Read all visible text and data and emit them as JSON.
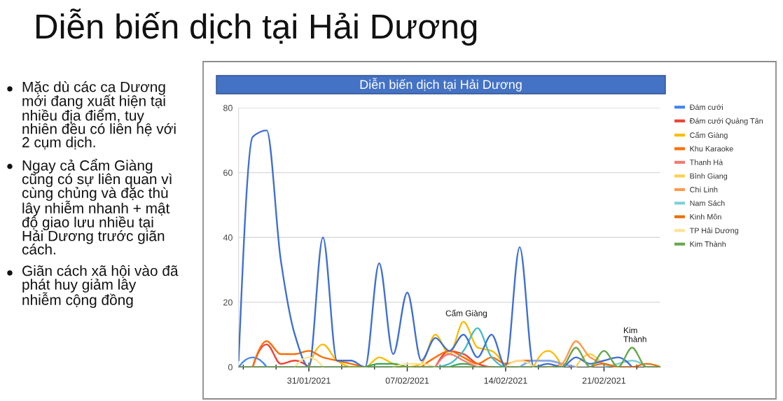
{
  "chart_data": {
    "type": "line",
    "title": "Diễn biến dịch tại Hải Dương",
    "subtitle": "Diễn biến dịch tại Hải Dương",
    "annotations": [
      "Mặc dù các ca Dương mới đang xuất hiện tại nhiều địa điểm, tuy nhiên đều có liên hệ với 2 cụm dịch.",
      "Ngay cả Cẩm Giàng cũng có sự liên quan vì cùng chủng và đặc thù lây nhiễm nhanh + mật độ giao lưu nhiều tại Hải Dương trước giãn cách.",
      "Giãn cách xã hội vào đã phát huy giảm lây nhiễm cộng đồng",
      {
        "text": "Cẩm Giàng",
        "x": "2021-02-11",
        "y": 14
      },
      {
        "text": "Kim\nThành",
        "x": "2021-02-23",
        "y": 6
      }
    ],
    "x": [
      "2021-01-26",
      "2021-01-27",
      "2021-01-28",
      "2021-01-29",
      "2021-01-30",
      "2021-01-31",
      "2021-02-01",
      "2021-02-02",
      "2021-02-03",
      "2021-02-04",
      "2021-02-05",
      "2021-02-06",
      "2021-02-07",
      "2021-02-08",
      "2021-02-09",
      "2021-02-10",
      "2021-02-11",
      "2021-02-12",
      "2021-02-13",
      "2021-02-14",
      "2021-02-15",
      "2021-02-16",
      "2021-02-17",
      "2021-02-18",
      "2021-02-19",
      "2021-02-20",
      "2021-02-21",
      "2021-02-22",
      "2021-02-23",
      "2021-02-24",
      "2021-02-25"
    ],
    "xlim": [
      "2021-01-26",
      "2021-02-25"
    ],
    "xticks": [
      {
        "value": "2021-01-26T08:00",
        "label": null
      },
      {
        "value": "2021-01-28T16:00",
        "label": null
      },
      {
        "value": "2021-01-31",
        "label": "31/01/2021"
      },
      {
        "value": "2021-02-02T08:00",
        "label": null
      },
      {
        "value": "2021-02-04T16:00",
        "label": null
      },
      {
        "value": "2021-02-07",
        "label": "07/02/2021"
      },
      {
        "value": "2021-02-09T08:00",
        "label": null
      },
      {
        "value": "2021-02-11T16:00",
        "label": null
      },
      {
        "value": "2021-02-14",
        "label": "14/02/2021"
      },
      {
        "value": "2021-02-16T08:00",
        "label": null
      },
      {
        "value": "2021-02-18T16:00",
        "label": null
      },
      {
        "value": "2021-02-21",
        "label": "21/02/2021"
      },
      {
        "value": "2021-02-23T08:00",
        "label": null
      }
    ],
    "ylim": [
      0,
      80
    ],
    "yticks": [
      0,
      20,
      40,
      60,
      80
    ],
    "grid": "y",
    "legend": "right",
    "series": [
      {
        "name": "Đám cưới",
        "color": "#4285f4",
        "values": [
          0,
          3,
          0,
          null,
          null,
          null,
          null,
          null,
          null,
          null,
          null,
          null,
          null,
          null,
          null,
          null,
          null,
          null,
          null,
          null,
          null,
          null,
          null,
          null,
          null,
          null,
          null,
          null,
          null,
          null,
          null
        ]
      },
      {
        "name": "Đám cưới Quảng Tân",
        "color": "#ea4335",
        "values": [
          null,
          0,
          7,
          1,
          2,
          0,
          null,
          null,
          null,
          null,
          null,
          null,
          null,
          null,
          0,
          5,
          4,
          1,
          0,
          null,
          null,
          null,
          null,
          null,
          null,
          null,
          null,
          null,
          null,
          null,
          null
        ]
      },
      {
        "name": "Cẩm Giàng",
        "color": "#fbbc04",
        "values": [
          null,
          null,
          null,
          null,
          null,
          0,
          7,
          2,
          0,
          0,
          3,
          1,
          0,
          1,
          10,
          4,
          14,
          6,
          5,
          0,
          null,
          0,
          5,
          0,
          null,
          null,
          null,
          null,
          null,
          null,
          null
        ]
      },
      {
        "color": "#34a853",
        "values": [
          null,
          null,
          null,
          null,
          null,
          null,
          null,
          null,
          null,
          0,
          1,
          1,
          0,
          null,
          null,
          0,
          1,
          0,
          null,
          null,
          null,
          null,
          null,
          null,
          null,
          null,
          null,
          null,
          null,
          null,
          null
        ]
      },
      {
        "name": "Khu Karaoke",
        "color": "#ff6d01",
        "values": [
          null,
          0,
          8,
          4,
          4,
          5,
          3,
          2,
          1,
          0,
          null,
          null,
          null,
          0,
          3,
          5,
          3,
          1,
          3,
          1,
          2,
          2,
          2,
          1,
          0,
          null,
          null,
          null,
          null,
          null,
          null
        ]
      },
      {
        "color": "#46bdc6",
        "values": [
          null,
          null,
          null,
          null,
          null,
          null,
          null,
          null,
          null,
          null,
          null,
          null,
          null,
          null,
          0,
          1,
          5,
          12,
          3,
          0,
          null,
          null,
          null,
          null,
          null,
          null,
          null,
          null,
          null,
          null,
          null
        ]
      },
      {
        "color": "#7baaf7",
        "values": [
          null,
          null,
          null,
          null,
          null,
          null,
          null,
          null,
          null,
          null,
          null,
          null,
          null,
          null,
          null,
          null,
          null,
          null,
          null,
          null,
          0,
          2,
          2,
          1,
          0,
          null,
          null,
          null,
          null,
          null,
          null
        ]
      },
      {
        "name": "Thanh Hà",
        "color": "#f07b72",
        "values": [
          null,
          null,
          null,
          null,
          null,
          null,
          null,
          null,
          null,
          null,
          null,
          null,
          null,
          null,
          0,
          4,
          2,
          0,
          null,
          null,
          null,
          null,
          null,
          null,
          null,
          null,
          null,
          null,
          null,
          null,
          null
        ]
      },
      {
        "name": "Bình Giang",
        "color": "#fcd04f",
        "values": [
          null,
          null,
          null,
          null,
          null,
          null,
          null,
          null,
          null,
          null,
          null,
          null,
          null,
          null,
          null,
          null,
          null,
          null,
          null,
          null,
          null,
          null,
          null,
          null,
          0,
          4,
          1,
          0,
          null,
          null,
          null
        ]
      },
      {
        "name": "Chí Linh",
        "color": "#ff994d",
        "values": [
          null,
          null,
          null,
          null,
          null,
          null,
          null,
          null,
          null,
          null,
          null,
          null,
          null,
          null,
          null,
          null,
          null,
          null,
          null,
          null,
          null,
          null,
          0,
          1,
          8,
          3,
          1,
          0,
          null,
          null,
          null
        ]
      },
      {
        "name": "Nam Sách",
        "color": "#7ed1d7",
        "values": [
          null,
          null,
          null,
          null,
          null,
          null,
          null,
          null,
          null,
          null,
          null,
          null,
          null,
          null,
          null,
          null,
          null,
          null,
          null,
          null,
          null,
          null,
          null,
          null,
          null,
          null,
          0,
          1,
          2,
          0,
          null
        ]
      },
      {
        "color": "#3f6fd1",
        "values": [
          2,
          71,
          73,
          33,
          10,
          0,
          40,
          2,
          2,
          0,
          32,
          4,
          23,
          2,
          9,
          5,
          10,
          3,
          10,
          0,
          37,
          0,
          1,
          0,
          3,
          1,
          2,
          3,
          0,
          null,
          null
        ]
      },
      {
        "name": "Kinh Môn",
        "color": "#e8710a",
        "values": [
          null,
          null,
          null,
          null,
          null,
          null,
          null,
          null,
          null,
          null,
          null,
          null,
          null,
          null,
          null,
          null,
          null,
          null,
          null,
          null,
          null,
          null,
          null,
          null,
          null,
          0,
          1,
          0,
          0,
          1,
          0
        ]
      },
      {
        "name": "TP Hải Dương",
        "color": "#fde293",
        "values": [
          null,
          null,
          null,
          null,
          0,
          3,
          0,
          null,
          null,
          null,
          null,
          0,
          1,
          1,
          0,
          null,
          null,
          null,
          null,
          0,
          2,
          0,
          null,
          null,
          null,
          null,
          null,
          null,
          null,
          null,
          null
        ]
      },
      {
        "name": "Kim Thành",
        "color": "#6aa84f",
        "values": [
          0,
          0,
          0,
          0,
          0,
          0,
          0,
          0,
          0,
          0,
          0,
          0,
          0,
          0,
          0,
          0,
          0,
          0,
          0,
          0,
          0,
          0,
          0,
          0,
          6,
          0,
          5,
          0,
          6,
          0,
          0
        ]
      }
    ]
  }
}
